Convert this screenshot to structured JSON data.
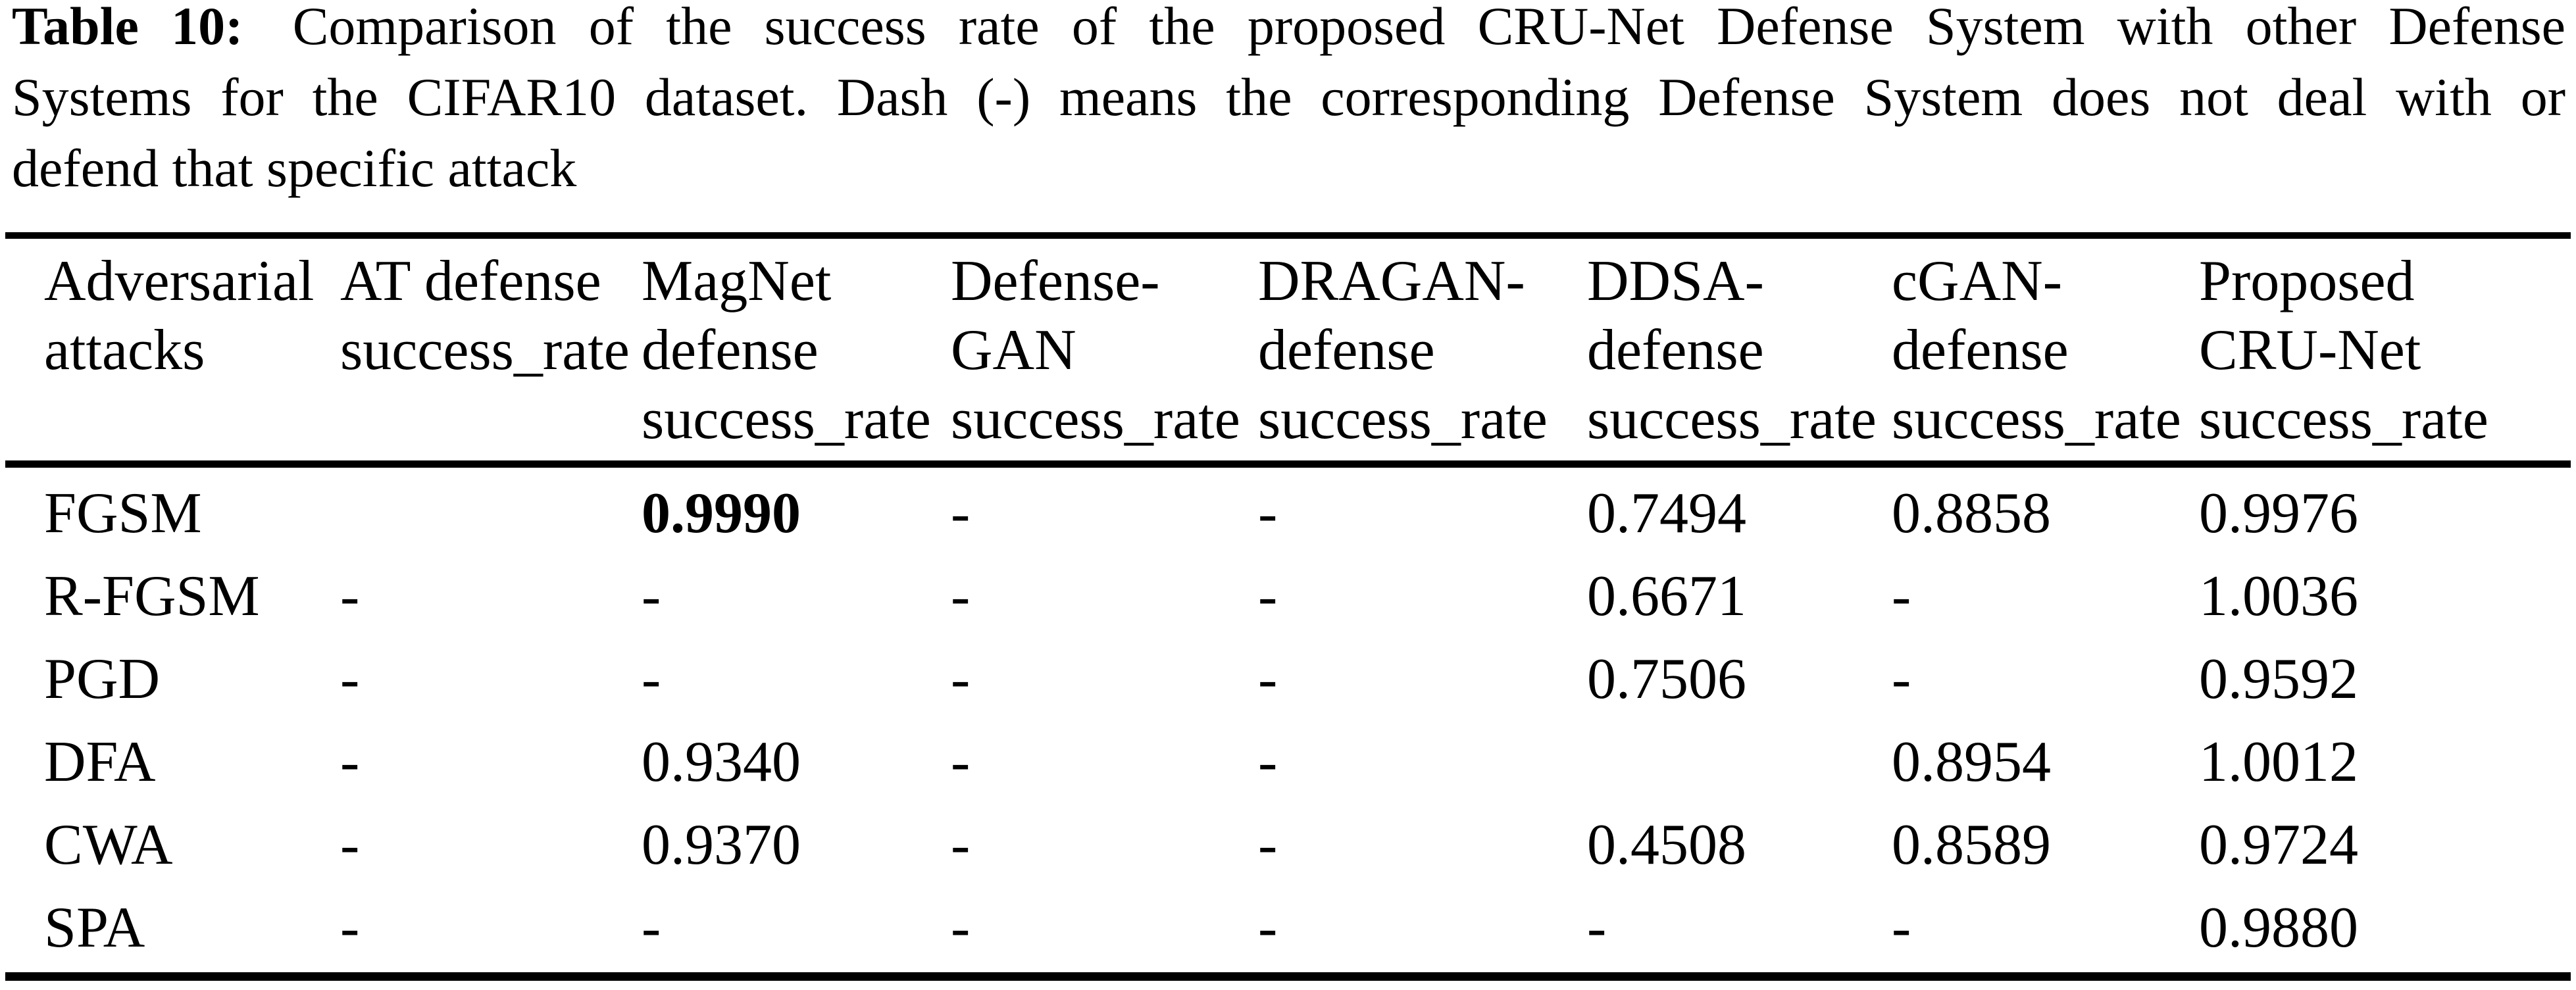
{
  "colors": {
    "text": "#000000",
    "background": "#ffffff"
  },
  "caption": {
    "label": "Table 10:",
    "line1_rest": "Comparison of the success rate of the proposed CRU-Net Defense System with other Defense",
    "line2": "Systems for the CIFAR10 dataset. Dash (-) means the corresponding Defense System does not deal with or",
    "line3": "defend that specific attack"
  },
  "table": {
    "columns": [
      {
        "lines": [
          "Adversarial",
          "attacks"
        ]
      },
      {
        "lines": [
          "AT defense",
          "success_rate"
        ]
      },
      {
        "lines": [
          "MagNet",
          "defense",
          "success_rate"
        ]
      },
      {
        "lines": [
          "Defense-",
          "GAN",
          "success_rate"
        ]
      },
      {
        "lines": [
          "DRAGAN-",
          "defense",
          "success_rate"
        ]
      },
      {
        "lines": [
          "DDSA-",
          "defense",
          "success_rate"
        ]
      },
      {
        "lines": [
          "cGAN-",
          "defense",
          "success_rate"
        ]
      },
      {
        "lines": [
          "Proposed",
          "CRU-Net",
          "success_rate"
        ]
      }
    ],
    "rows": [
      {
        "cells": [
          "FGSM",
          "",
          "0.9990",
          "-",
          "-",
          "0.7494",
          "0.8858",
          "0.9976"
        ]
      },
      {
        "cells": [
          "R-FGSM",
          "-",
          "-",
          "-",
          "-",
          "0.6671",
          "-",
          "1.0036"
        ]
      },
      {
        "cells": [
          "PGD",
          "-",
          "-",
          "-",
          "-",
          "0.7506",
          "-",
          "0.9592"
        ]
      },
      {
        "cells": [
          "DFA",
          "-",
          "0.9340",
          "-",
          "-",
          "",
          "0.8954",
          "1.0012"
        ]
      },
      {
        "cells": [
          "CWA",
          "-",
          "0.9370",
          "-",
          "-",
          "0.4508",
          "0.8589",
          "0.9724"
        ]
      },
      {
        "cells": [
          "SPA",
          "-",
          "-",
          "-",
          "-",
          "-",
          "-",
          "0.9880"
        ]
      }
    ]
  }
}
